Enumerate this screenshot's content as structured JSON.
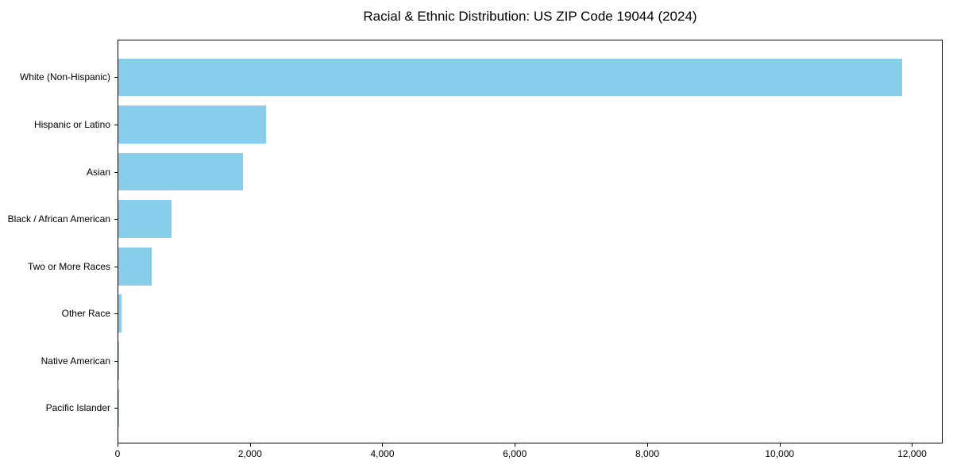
{
  "title": "Racial & Ethnic Distribution: US ZIP Code 19044 (2024)",
  "colors": {
    "bar": "#87CEEB",
    "axis": "#000000",
    "text": "#000000",
    "background": "#FFFFFF"
  },
  "chart_data": {
    "type": "bar",
    "orientation": "horizontal",
    "title": "Racial & Ethnic Distribution: US ZIP Code 19044 (2024)",
    "xlabel": "",
    "ylabel": "",
    "categories": [
      "White (Non-Hispanic)",
      "Hispanic or Latino",
      "Asian",
      "Black / African American",
      "Two or More Races",
      "Other Race",
      "Native American",
      "Pacific Islander"
    ],
    "values": [
      11850,
      2230,
      1880,
      810,
      500,
      45,
      10,
      5
    ],
    "xlim": [
      0,
      12450
    ],
    "x_ticks": [
      0,
      2000,
      4000,
      6000,
      8000,
      10000,
      12000
    ],
    "x_tick_labels": [
      "0",
      "2,000",
      "4,000",
      "6,000",
      "8,000",
      "10,000",
      "12,000"
    ],
    "grid": false,
    "legend": null,
    "bar_color": "#87CEEB"
  }
}
